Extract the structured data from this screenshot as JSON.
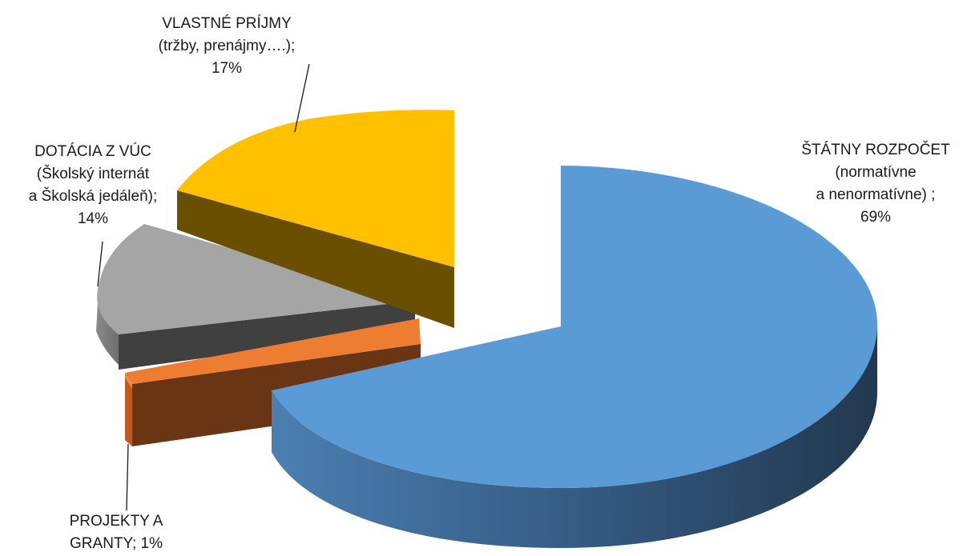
{
  "chart_data": {
    "type": "pie",
    "three_d": true,
    "exploded": true,
    "title": "",
    "slices": [
      {
        "name": "ŠTÁTNY ROZPOČET (normatívne a nenormatívne)",
        "value": 69,
        "value_label": "69%",
        "color": "#5b9bd5",
        "label_lines": [
          "ŠTÁTNY  ROZPOČET",
          "(normatívne",
          "a nenormatívne)  ;",
          "69%"
        ]
      },
      {
        "name": "PROJEKTY A GRANTY",
        "value": 1,
        "value_label": "1%",
        "color": "#ed7d31",
        "label_lines": [
          "PROJEKTY  A",
          "GRANTY;  1%"
        ]
      },
      {
        "name": "DOTÁCIA Z VÚC (Školský internát a Školská jedáleň)",
        "value": 14,
        "value_label": "14%",
        "color": "#a5a5a5",
        "label_lines": [
          "DOTÁCIA Z VÚC",
          "(Školský internát",
          "a Školská jedáleň);",
          "14%"
        ]
      },
      {
        "name": "VLASTNÉ PRÍJMY (tržby, prenájmy....)",
        "value": 17,
        "value_label": "17%",
        "color": "#ffc000",
        "label_lines": [
          "VLASTNÉ  PRÍJMY",
          "(tržby,  prenájmy….);",
          "17%"
        ]
      }
    ]
  }
}
